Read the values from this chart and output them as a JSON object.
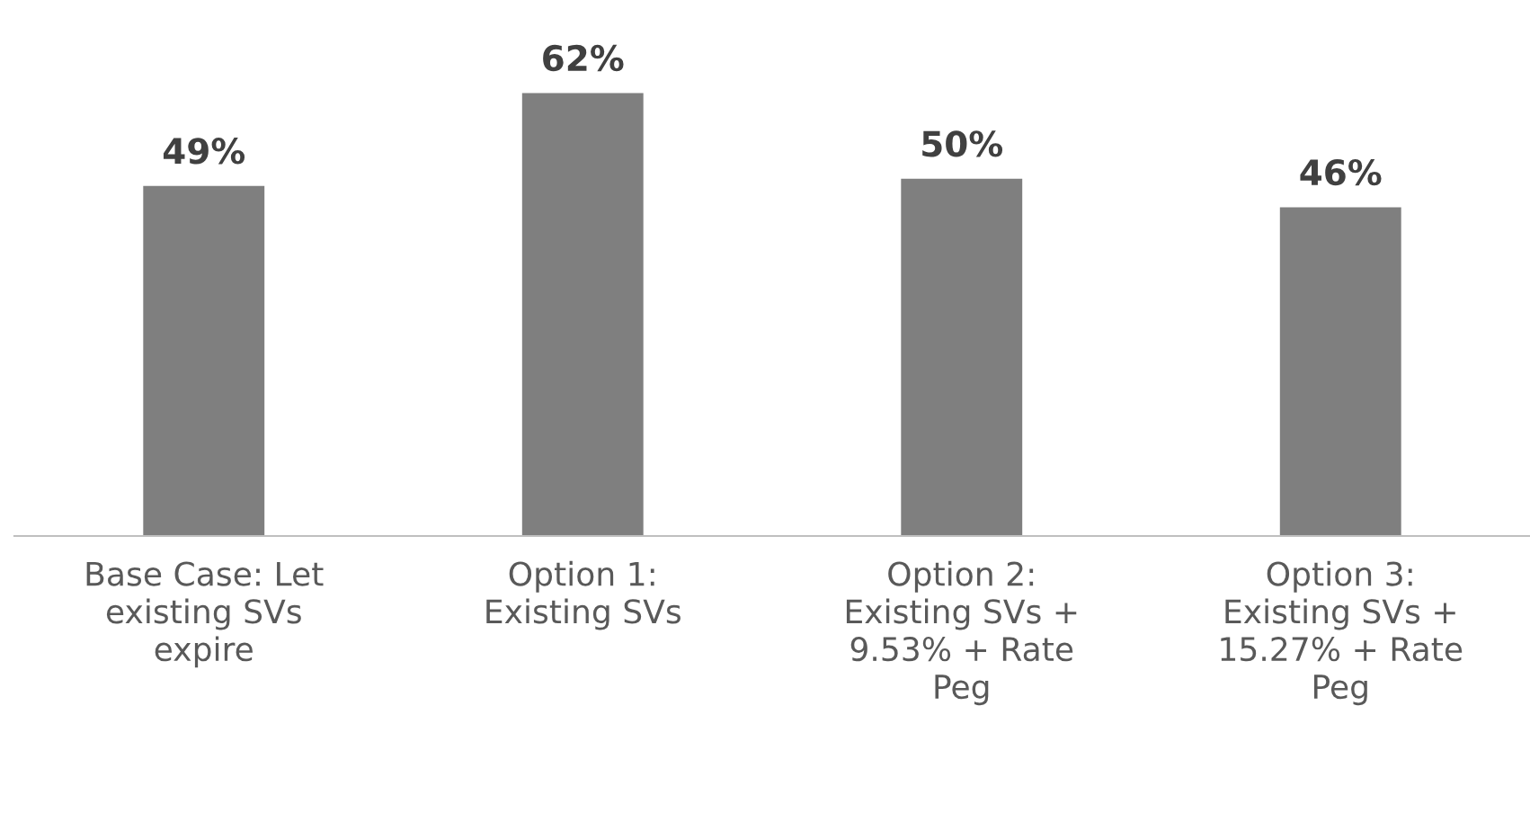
{
  "chart_data": {
    "type": "bar",
    "categories": [
      "Base Case: Let\nexisting SVs\nexpire",
      "Option 1:\nExisting SVs",
      "Option 2:\nExisting SVs +\n9.53% + Rate\nPeg",
      "Option 3:\nExisting SVs +\n15.27% + Rate\nPeg"
    ],
    "values": [
      49,
      62,
      50,
      46
    ],
    "value_labels": [
      "49%",
      "62%",
      "50%",
      "46%"
    ],
    "color": "#7f7f7f",
    "grid": false,
    "legend": false
  }
}
